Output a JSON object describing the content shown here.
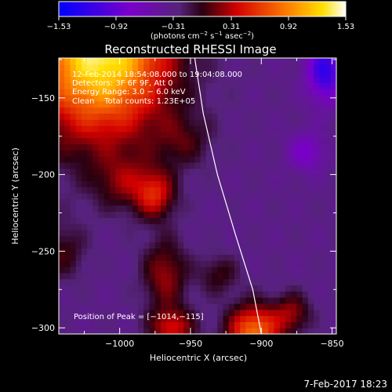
{
  "chart_data": {
    "type": "heatmap",
    "title": "Reconstructed RHESSI Image",
    "xlabel": "Heliocentric X (arcsec)",
    "ylabel": "Heliocentric Y (arcsec)",
    "xlim": [
      -1043,
      -847
    ],
    "ylim": [
      -304,
      -124
    ],
    "xticks": [
      -1000,
      -950,
      -900,
      -850
    ],
    "xtick_labels": [
      "−1000",
      "−950",
      "−900",
      "−850"
    ],
    "yticks": [
      -150,
      -200,
      -250,
      -300
    ],
    "ytick_labels": [
      "−150",
      "−200",
      "−250",
      "−300"
    ],
    "colorbar": {
      "min": -1.53,
      "max": 1.53,
      "ticks": [
        -1.53,
        -0.92,
        -0.31,
        0.31,
        0.92,
        1.53
      ],
      "tick_labels": [
        "−1.53",
        "−0.92",
        "−0.31",
        "0.31",
        "0.92",
        "1.53"
      ],
      "units_parts": [
        "(photons cm",
        "−2",
        " s",
        "−1",
        " asec",
        "−2",
        ")"
      ]
    },
    "annotations": [
      "12-Feb-2014 18:54:08.000 to 19:04:08.000",
      "Detectors: 3F 6F 9F, Att 0",
      "Energy Range: 3.0 − 6.0 keV",
      "Clean    Total counts: 1.23E+05"
    ],
    "peak_label": "Position of Peak = [−1014,−115]",
    "peak": [
      -1014,
      -115
    ],
    "limb_curve": [
      [
        -947,
        -124
      ],
      [
        -941,
        -160
      ],
      [
        -931,
        -200
      ],
      [
        -918,
        -240
      ],
      [
        -906,
        -275
      ],
      [
        -900,
        -304
      ]
    ],
    "sources": [
      {
        "x": -1014,
        "y": -118,
        "sx": 34,
        "sy": 40,
        "amp": 1.75
      },
      {
        "x": -975,
        "y": -213,
        "sx": 10,
        "sy": 11,
        "amp": 0.7
      },
      {
        "x": -997,
        "y": -205,
        "sx": 14,
        "sy": 12,
        "amp": 0.4
      },
      {
        "x": -955,
        "y": -178,
        "sx": 14,
        "sy": 12,
        "amp": 0.3
      },
      {
        "x": -968,
        "y": -265,
        "sx": 11,
        "sy": 16,
        "amp": 0.55
      },
      {
        "x": -963,
        "y": -300,
        "sx": 11,
        "sy": 9,
        "amp": 0.7
      },
      {
        "x": -930,
        "y": -265,
        "sx": 10,
        "sy": 9,
        "amp": 0.35
      },
      {
        "x": -905,
        "y": -302,
        "sx": 13,
        "sy": 12,
        "amp": 1.15
      },
      {
        "x": -878,
        "y": -290,
        "sx": 9,
        "sy": 9,
        "amp": 0.5
      },
      {
        "x": -1040,
        "y": -250,
        "sx": 11,
        "sy": 13,
        "amp": 0.35
      },
      {
        "x": -855,
        "y": -132,
        "sx": 9,
        "sy": 14,
        "amp": -0.9
      },
      {
        "x": -868,
        "y": -185,
        "sx": 9,
        "sy": 9,
        "amp": -0.45
      }
    ]
  },
  "footer_timestamp": "7-Feb-2017 18:23"
}
